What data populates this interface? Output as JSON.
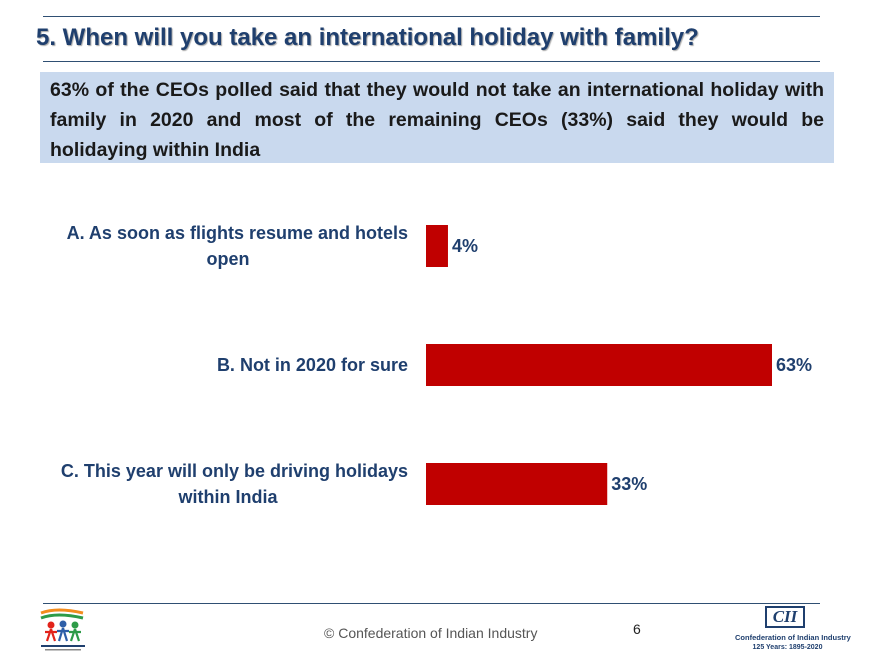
{
  "header": {
    "title": "5. When will you take an international holiday with family?"
  },
  "summary": {
    "text": "63% of the CEOs polled said that they would not take an international holiday with family in 2020 and most of the remaining CEOs (33%) said they would be holidaying within India"
  },
  "chart_data": {
    "type": "bar",
    "orientation": "horizontal",
    "categories": [
      [
        "A. As soon as flights resume and hotels",
        "open"
      ],
      [
        "B. Not in 2020 for sure"
      ],
      [
        "C. This year will only be driving holidays",
        "within India"
      ]
    ],
    "values": [
      4,
      63,
      33
    ],
    "value_labels": [
      "4%",
      "63%",
      "33%"
    ],
    "unit": "%",
    "bar_color": "#c00000",
    "xlim": [
      0,
      63
    ],
    "grid": false,
    "legend": "none"
  },
  "footer": {
    "copyright": "© Confederation of Indian Industry",
    "page_number": "6",
    "logo_right_mark": "CII",
    "logo_right_line1": "Confederation of Indian Industry",
    "logo_right_line2": "125 Years: 1895-2020"
  },
  "colors": {
    "title": "#1f3f6e",
    "summary_bg": "#c9d9ee",
    "bar": "#c00000"
  }
}
